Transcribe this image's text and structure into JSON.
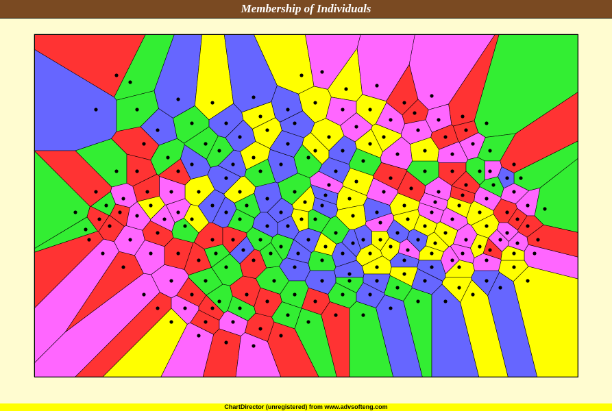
{
  "title": "Membership of Individuals",
  "footer": "ChartDirector (unregistered) from www.advsofteng.com",
  "chart_data": {
    "type": "scatter",
    "variant": "voronoi-membership",
    "title": "Membership of Individuals",
    "xlabel": "",
    "ylabel": "",
    "xlim": [
      0,
      793
    ],
    "ylim": [
      0,
      500
    ],
    "grid": false,
    "legend": "none",
    "group_colors": [
      "#ff3333",
      "#ffff00",
      "#33ee33",
      "#ff66ff",
      "#6666ff"
    ],
    "points": [
      [
        120,
        60
      ],
      [
        140,
        70
      ],
      [
        90,
        110
      ],
      [
        150,
        110
      ],
      [
        210,
        95
      ],
      [
        260,
        100
      ],
      [
        320,
        92
      ],
      [
        390,
        60
      ],
      [
        420,
        55
      ],
      [
        455,
        80
      ],
      [
        500,
        75
      ],
      [
        540,
        100
      ],
      [
        580,
        90
      ],
      [
        625,
        120
      ],
      [
        660,
        130
      ],
      [
        160,
        160
      ],
      [
        195,
        180
      ],
      [
        230,
        190
      ],
      [
        270,
        170
      ],
      [
        300,
        150
      ],
      [
        340,
        140
      ],
      [
        380,
        130
      ],
      [
        430,
        150
      ],
      [
        470,
        135
      ],
      [
        510,
        150
      ],
      [
        560,
        140
      ],
      [
        600,
        150
      ],
      [
        640,
        160
      ],
      [
        610,
        200
      ],
      [
        570,
        200
      ],
      [
        520,
        210
      ],
      [
        480,
        185
      ],
      [
        440,
        200
      ],
      [
        400,
        180
      ],
      [
        360,
        190
      ],
      [
        320,
        180
      ],
      [
        280,
        210
      ],
      [
        240,
        230
      ],
      [
        200,
        230
      ],
      [
        170,
        250
      ],
      [
        130,
        240
      ],
      [
        110,
        280
      ],
      [
        140,
        300
      ],
      [
        180,
        290
      ],
      [
        220,
        280
      ],
      [
        260,
        300
      ],
      [
        300,
        270
      ],
      [
        340,
        240
      ],
      [
        380,
        230
      ],
      [
        420,
        250
      ],
      [
        460,
        240
      ],
      [
        500,
        260
      ],
      [
        540,
        250
      ],
      [
        580,
        260
      ],
      [
        620,
        250
      ],
      [
        660,
        240
      ],
      [
        690,
        260
      ],
      [
        720,
        250
      ],
      [
        240,
        330
      ],
      [
        280,
        340
      ],
      [
        320,
        330
      ],
      [
        360,
        310
      ],
      [
        400,
        300
      ],
      [
        440,
        290
      ],
      [
        480,
        300
      ],
      [
        520,
        310
      ],
      [
        560,
        300
      ],
      [
        600,
        290
      ],
      [
        630,
        300
      ],
      [
        660,
        280
      ],
      [
        700,
        230
      ],
      [
        720,
        280
      ],
      [
        200,
        360
      ],
      [
        230,
        380
      ],
      [
        270,
        390
      ],
      [
        310,
        380
      ],
      [
        350,
        360
      ],
      [
        380,
        340
      ],
      [
        420,
        330
      ],
      [
        460,
        350
      ],
      [
        500,
        340
      ],
      [
        540,
        330
      ],
      [
        580,
        320
      ],
      [
        610,
        330
      ],
      [
        650,
        310
      ],
      [
        680,
        300
      ],
      [
        250,
        420
      ],
      [
        290,
        420
      ],
      [
        330,
        430
      ],
      [
        370,
        410
      ],
      [
        410,
        390
      ],
      [
        450,
        380
      ],
      [
        490,
        380
      ],
      [
        530,
        370
      ],
      [
        570,
        360
      ],
      [
        620,
        370
      ],
      [
        660,
        360
      ],
      [
        700,
        340
      ],
      [
        730,
        320
      ],
      [
        200,
        420
      ],
      [
        160,
        380
      ],
      [
        130,
        340
      ],
      [
        100,
        320
      ],
      [
        80,
        300
      ],
      [
        60,
        260
      ],
      [
        90,
        230
      ],
      [
        120,
        200
      ],
      [
        180,
        140
      ],
      [
        230,
        130
      ],
      [
        280,
        130
      ],
      [
        330,
        120
      ],
      [
        370,
        110
      ],
      [
        410,
        100
      ],
      [
        450,
        110
      ],
      [
        490,
        110
      ],
      [
        520,
        125
      ],
      [
        555,
        115
      ],
      [
        590,
        125
      ],
      [
        630,
        140
      ],
      [
        665,
        170
      ],
      [
        700,
        190
      ],
      [
        710,
        210
      ],
      [
        690,
        210
      ],
      [
        650,
        200
      ],
      [
        260,
        250
      ],
      [
        300,
        230
      ],
      [
        340,
        280
      ],
      [
        390,
        270
      ],
      [
        430,
        220
      ],
      [
        470,
        215
      ],
      [
        510,
        230
      ],
      [
        550,
        225
      ],
      [
        590,
        230
      ],
      [
        630,
        220
      ],
      [
        670,
        220
      ],
      [
        210,
        200
      ],
      [
        250,
        160
      ],
      [
        290,
        190
      ],
      [
        330,
        200
      ],
      [
        370,
        160
      ],
      [
        410,
        170
      ],
      [
        450,
        170
      ],
      [
        490,
        160
      ],
      [
        530,
        175
      ],
      [
        570,
        170
      ],
      [
        610,
        175
      ],
      [
        150,
        200
      ],
      [
        170,
        320
      ],
      [
        210,
        320
      ],
      [
        250,
        360
      ],
      [
        290,
        300
      ],
      [
        330,
        300
      ],
      [
        370,
        280
      ],
      [
        410,
        270
      ],
      [
        450,
        320
      ],
      [
        490,
        320
      ],
      [
        530,
        290
      ],
      [
        570,
        280
      ],
      [
        610,
        270
      ],
      [
        650,
        260
      ],
      [
        690,
        290
      ],
      [
        180,
        400
      ],
      [
        220,
        400
      ],
      [
        260,
        400
      ],
      [
        300,
        400
      ],
      [
        340,
        390
      ],
      [
        380,
        380
      ],
      [
        420,
        360
      ],
      [
        460,
        360
      ],
      [
        500,
        360
      ],
      [
        540,
        350
      ],
      [
        580,
        340
      ],
      [
        620,
        340
      ],
      [
        660,
        330
      ],
      [
        700,
        320
      ],
      [
        240,
        440
      ],
      [
        280,
        450
      ],
      [
        320,
        455
      ],
      [
        360,
        440
      ],
      [
        400,
        420
      ],
      [
        440,
        410
      ],
      [
        480,
        410
      ],
      [
        520,
        400
      ],
      [
        560,
        390
      ],
      [
        600,
        390
      ],
      [
        640,
        380
      ],
      [
        680,
        370
      ],
      [
        720,
        360
      ],
      [
        210,
        260
      ],
      [
        230,
        270
      ],
      [
        190,
        270
      ],
      [
        165,
        230
      ],
      [
        150,
        265
      ],
      [
        125,
        260
      ],
      [
        105,
        250
      ],
      [
        95,
        270
      ],
      [
        75,
        285
      ],
      [
        280,
        260
      ],
      [
        310,
        250
      ],
      [
        360,
        260
      ],
      [
        395,
        245
      ],
      [
        425,
        235
      ],
      [
        465,
        265
      ],
      [
        505,
        275
      ],
      [
        545,
        270
      ],
      [
        585,
        245
      ],
      [
        625,
        235
      ],
      [
        665,
        200
      ],
      [
        705,
        270
      ],
      [
        745,
        255
      ],
      [
        735,
        300
      ],
      [
        265,
        320
      ],
      [
        305,
        315
      ],
      [
        345,
        320
      ],
      [
        385,
        320
      ],
      [
        425,
        310
      ],
      [
        465,
        305
      ],
      [
        505,
        300
      ],
      [
        545,
        315
      ],
      [
        585,
        305
      ],
      [
        625,
        320
      ],
      [
        665,
        315
      ],
      [
        705,
        305
      ]
    ]
  }
}
